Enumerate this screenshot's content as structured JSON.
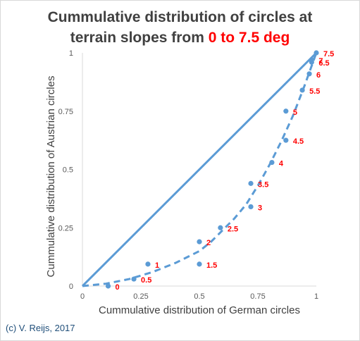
{
  "chart_data": {
    "type": "scatter",
    "title": {
      "line1": "Cummulative distribution of circles at",
      "line2_prefix": "terrain slopes from ",
      "line2_highlight": "0 to 7.5 deg"
    },
    "xlabel": "Cummulative distribution of German circles",
    "ylabel": "Cummulative distribution of Austrian circles",
    "xlim": [
      0,
      1
    ],
    "ylim": [
      0,
      1
    ],
    "x_ticks": [
      "0",
      "0.25",
      "0.5",
      "0.75",
      "1"
    ],
    "y_ticks": [
      "0",
      "0.25",
      "0.5",
      "0.75",
      "1"
    ],
    "grid": false,
    "colors": {
      "series": "#5b9bd5",
      "labels": "#ff0000",
      "title_highlight": "#ff0000",
      "text": "#404040"
    },
    "points": [
      {
        "label": "0",
        "x": 0.11,
        "y": 0.0
      },
      {
        "label": "0.5",
        "x": 0.22,
        "y": 0.03
      },
      {
        "label": "1",
        "x": 0.28,
        "y": 0.094
      },
      {
        "label": "1.5",
        "x": 0.5,
        "y": 0.094
      },
      {
        "label": "2",
        "x": 0.5,
        "y": 0.19
      },
      {
        "label": "2.5",
        "x": 0.59,
        "y": 0.25
      },
      {
        "label": "3",
        "x": 0.72,
        "y": 0.34
      },
      {
        "label": "3.5",
        "x": 0.72,
        "y": 0.44
      },
      {
        "label": "4",
        "x": 0.81,
        "y": 0.53
      },
      {
        "label": "4.5",
        "x": 0.87,
        "y": 0.625
      },
      {
        "label": "5",
        "x": 0.87,
        "y": 0.75
      },
      {
        "label": "5.5",
        "x": 0.94,
        "y": 0.84
      },
      {
        "label": "6",
        "x": 0.97,
        "y": 0.91
      },
      {
        "label": "6.5",
        "x": 0.98,
        "y": 0.96
      },
      {
        "label": "7",
        "x": 0.98,
        "y": 0.97
      },
      {
        "label": "7.5",
        "x": 1.0,
        "y": 1.0
      }
    ],
    "reference_line": {
      "x": [
        0,
        1
      ],
      "y": [
        0,
        1
      ]
    },
    "trendline": {
      "x": [
        0,
        0.1,
        0.2,
        0.3,
        0.4,
        0.5,
        0.55,
        0.6,
        0.65,
        0.7,
        0.75,
        0.8,
        0.85,
        0.9,
        0.95,
        1.0
      ],
      "y": [
        0,
        0.01,
        0.03,
        0.06,
        0.1,
        0.15,
        0.19,
        0.24,
        0.29,
        0.35,
        0.43,
        0.52,
        0.62,
        0.73,
        0.86,
        1.0
      ]
    }
  },
  "credit": "(c) V. Reijs, 2017"
}
